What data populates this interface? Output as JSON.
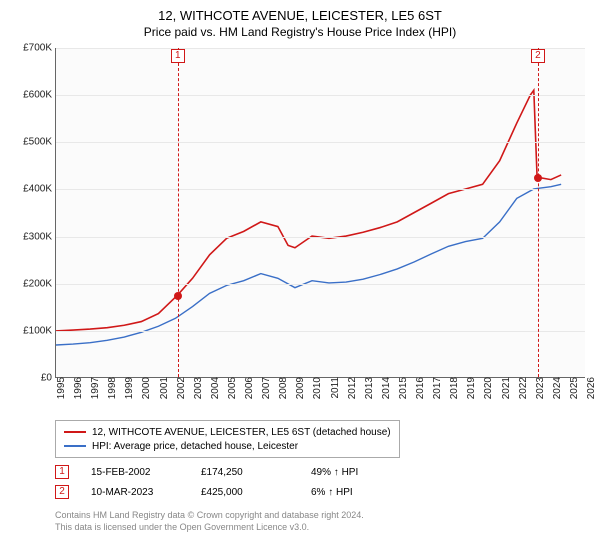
{
  "title": "12, WITHCOTE AVENUE, LEICESTER, LE5 6ST",
  "subtitle": "Price paid vs. HM Land Registry's House Price Index (HPI)",
  "chart": {
    "type": "line",
    "background_color": "#fbfbfb",
    "grid_color": "#e8e8e8",
    "axis_color": "#666666",
    "x": {
      "min": 1995,
      "max": 2026,
      "tick_step": 1,
      "ticks": [
        1995,
        1996,
        1997,
        1998,
        1999,
        2000,
        2001,
        2002,
        2003,
        2004,
        2005,
        2006,
        2007,
        2008,
        2009,
        2010,
        2011,
        2012,
        2013,
        2014,
        2015,
        2016,
        2017,
        2018,
        2019,
        2020,
        2021,
        2022,
        2023,
        2024,
        2025,
        2026
      ]
    },
    "y": {
      "min": 0,
      "max": 700000,
      "tick_step": 100000,
      "ticks": [
        "£0",
        "£100K",
        "£200K",
        "£300K",
        "£400K",
        "£500K",
        "£600K",
        "£700K"
      ]
    },
    "series": [
      {
        "name": "12, WITHCOTE AVENUE, LEICESTER, LE5 6ST (detached house)",
        "color": "#d01818",
        "line_width": 1.6,
        "points": [
          [
            1995,
            98000
          ],
          [
            1996,
            100000
          ],
          [
            1997,
            102000
          ],
          [
            1998,
            105000
          ],
          [
            1999,
            110000
          ],
          [
            2000,
            118000
          ],
          [
            2001,
            135000
          ],
          [
            2002.12,
            174250
          ],
          [
            2003,
            210000
          ],
          [
            2004,
            260000
          ],
          [
            2005,
            295000
          ],
          [
            2006,
            310000
          ],
          [
            2007,
            330000
          ],
          [
            2008,
            320000
          ],
          [
            2008.6,
            280000
          ],
          [
            2009,
            275000
          ],
          [
            2010,
            300000
          ],
          [
            2011,
            295000
          ],
          [
            2012,
            300000
          ],
          [
            2013,
            308000
          ],
          [
            2014,
            318000
          ],
          [
            2015,
            330000
          ],
          [
            2016,
            350000
          ],
          [
            2017,
            370000
          ],
          [
            2018,
            390000
          ],
          [
            2019,
            400000
          ],
          [
            2020,
            410000
          ],
          [
            2021,
            460000
          ],
          [
            2022,
            540000
          ],
          [
            2022.8,
            600000
          ],
          [
            2023,
            610000
          ],
          [
            2023.19,
            425000
          ],
          [
            2024,
            420000
          ],
          [
            2024.6,
            430000
          ]
        ]
      },
      {
        "name": "HPI: Average price, detached house, Leicester",
        "color": "#3a6fc7",
        "line_width": 1.4,
        "points": [
          [
            1995,
            68000
          ],
          [
            1996,
            70000
          ],
          [
            1997,
            73000
          ],
          [
            1998,
            78000
          ],
          [
            1999,
            85000
          ],
          [
            2000,
            95000
          ],
          [
            2001,
            108000
          ],
          [
            2002,
            125000
          ],
          [
            2003,
            150000
          ],
          [
            2004,
            178000
          ],
          [
            2005,
            195000
          ],
          [
            2006,
            205000
          ],
          [
            2007,
            220000
          ],
          [
            2008,
            210000
          ],
          [
            2009,
            190000
          ],
          [
            2010,
            205000
          ],
          [
            2011,
            200000
          ],
          [
            2012,
            202000
          ],
          [
            2013,
            208000
          ],
          [
            2014,
            218000
          ],
          [
            2015,
            230000
          ],
          [
            2016,
            245000
          ],
          [
            2017,
            262000
          ],
          [
            2018,
            278000
          ],
          [
            2019,
            288000
          ],
          [
            2020,
            295000
          ],
          [
            2021,
            330000
          ],
          [
            2022,
            380000
          ],
          [
            2023,
            400000
          ],
          [
            2024,
            405000
          ],
          [
            2024.6,
            410000
          ]
        ]
      }
    ],
    "markers": [
      {
        "index": "1",
        "x": 2002.12,
        "y": 174250,
        "color": "#d01818"
      },
      {
        "index": "2",
        "x": 2023.19,
        "y": 425000,
        "color": "#d01818"
      }
    ]
  },
  "legend": {
    "items": [
      {
        "color": "#d01818",
        "label": "12, WITHCOTE AVENUE, LEICESTER, LE5 6ST (detached house)"
      },
      {
        "color": "#3a6fc7",
        "label": "HPI: Average price, detached house, Leicester"
      }
    ]
  },
  "sales": [
    {
      "index": "1",
      "color": "#d01818",
      "date": "15-FEB-2002",
      "price": "£174,250",
      "pct": "49% ↑ HPI"
    },
    {
      "index": "2",
      "color": "#d01818",
      "date": "10-MAR-2023",
      "price": "£425,000",
      "pct": "6% ↑ HPI"
    }
  ],
  "footer": {
    "line1": "Contains HM Land Registry data © Crown copyright and database right 2024.",
    "line2": "This data is licensed under the Open Government Licence v3.0."
  }
}
